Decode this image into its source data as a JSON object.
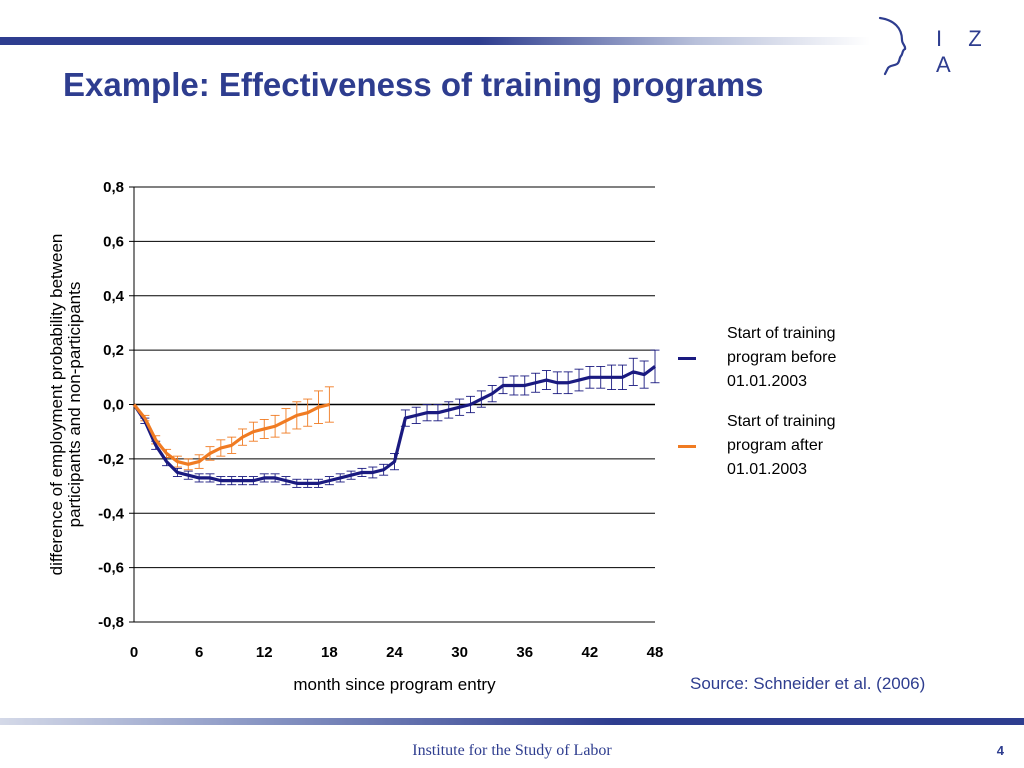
{
  "slide": {
    "title": "Example: Effectiveness of training programs",
    "source": "Source: Schneider et al. (2006)",
    "footer": "Institute for the Study of Labor",
    "page_number": "4",
    "logo_text": "I Z A"
  },
  "colors": {
    "brand": "#2e3d8f",
    "series_before": "#1a1a80",
    "series_after": "#f07b22"
  },
  "chart_data": {
    "type": "line",
    "xlabel": "month since program entry",
    "ylabel_lines": [
      "difference of employment probability between",
      "participants and non-participants"
    ],
    "xlim": [
      0,
      48
    ],
    "ylim": [
      -0.8,
      0.8
    ],
    "x_ticks": [
      0,
      6,
      12,
      18,
      24,
      30,
      36,
      42,
      48
    ],
    "x_tick_labels": [
      "0",
      "6",
      "12",
      "18",
      "24",
      "30",
      "36",
      "42",
      "48"
    ],
    "y_ticks": [
      0.8,
      0.6,
      0.4,
      0.2,
      0.0,
      -0.2,
      -0.4,
      -0.6,
      -0.8
    ],
    "y_tick_labels": [
      "0,8",
      "0,6",
      "0,4",
      "0,2",
      "0,0",
      "-0,2",
      "-0,4",
      "-0,6",
      "-0,8"
    ],
    "grid": "horizontal",
    "legend_position": "right",
    "error_bars": true,
    "series": [
      {
        "name": "Start of training\nprogram before\n01.01.2003",
        "color": "#1a1a80",
        "x": [
          0,
          1,
          2,
          3,
          4,
          5,
          6,
          7,
          8,
          9,
          10,
          11,
          12,
          13,
          14,
          15,
          16,
          17,
          18,
          19,
          20,
          21,
          22,
          23,
          24,
          25,
          26,
          27,
          28,
          29,
          30,
          31,
          32,
          33,
          34,
          35,
          36,
          37,
          38,
          39,
          40,
          41,
          42,
          43,
          44,
          45,
          46,
          47,
          48
        ],
        "y": [
          0.0,
          -0.06,
          -0.15,
          -0.21,
          -0.25,
          -0.26,
          -0.27,
          -0.27,
          -0.28,
          -0.28,
          -0.28,
          -0.28,
          -0.27,
          -0.27,
          -0.28,
          -0.29,
          -0.29,
          -0.29,
          -0.28,
          -0.27,
          -0.26,
          -0.25,
          -0.25,
          -0.24,
          -0.21,
          -0.05,
          -0.04,
          -0.03,
          -0.03,
          -0.02,
          -0.01,
          0.0,
          0.02,
          0.04,
          0.07,
          0.07,
          0.07,
          0.08,
          0.09,
          0.08,
          0.08,
          0.09,
          0.1,
          0.1,
          0.1,
          0.1,
          0.12,
          0.11,
          0.14
        ],
        "error": [
          0.0,
          0.01,
          0.015,
          0.015,
          0.015,
          0.015,
          0.015,
          0.015,
          0.015,
          0.015,
          0.015,
          0.015,
          0.015,
          0.015,
          0.015,
          0.015,
          0.015,
          0.015,
          0.015,
          0.015,
          0.015,
          0.015,
          0.02,
          0.02,
          0.03,
          0.03,
          0.03,
          0.03,
          0.03,
          0.03,
          0.03,
          0.03,
          0.03,
          0.03,
          0.03,
          0.035,
          0.035,
          0.035,
          0.035,
          0.04,
          0.04,
          0.04,
          0.04,
          0.04,
          0.045,
          0.045,
          0.05,
          0.05,
          0.06
        ]
      },
      {
        "name": "Start of training\nprogram after\n01.01.2003",
        "color": "#f07b22",
        "x": [
          0,
          1,
          2,
          3,
          4,
          5,
          6,
          7,
          8,
          9,
          10,
          11,
          12,
          13,
          14,
          15,
          16,
          17,
          18
        ],
        "y": [
          0.0,
          -0.05,
          -0.13,
          -0.18,
          -0.21,
          -0.22,
          -0.21,
          -0.18,
          -0.16,
          -0.15,
          -0.12,
          -0.1,
          -0.09,
          -0.08,
          -0.06,
          -0.04,
          -0.03,
          -0.01,
          0.0
        ],
        "error": [
          0.0,
          0.01,
          0.015,
          0.015,
          0.02,
          0.02,
          0.025,
          0.025,
          0.03,
          0.03,
          0.03,
          0.035,
          0.035,
          0.04,
          0.045,
          0.05,
          0.05,
          0.06,
          0.065
        ]
      }
    ]
  }
}
